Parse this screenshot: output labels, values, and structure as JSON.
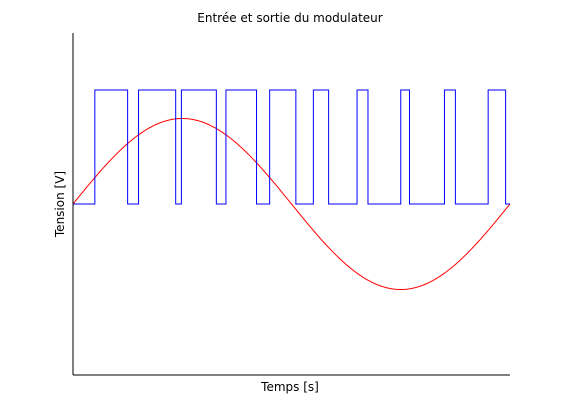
{
  "chart_data": {
    "type": "line",
    "title": "Entrée et sortie du modulateur",
    "xlabel": "Temps [s]",
    "ylabel": "Tension [V]",
    "grid": false,
    "x_ticks_shown": false,
    "y_ticks_shown": false,
    "xlim": [
      0,
      1
    ],
    "ylim": [
      -1.5,
      1.5
    ],
    "series": [
      {
        "color": "#ff0000",
        "style": "sine",
        "period": 1,
        "amplitude": 0.75,
        "values_x": [
          0,
          0.125,
          0.25,
          0.375,
          0.5,
          0.625,
          0.75,
          0.875,
          1
        ],
        "values": [
          0,
          0.53,
          0.75,
          0.53,
          0,
          -0.53,
          -0.75,
          -0.53,
          0
        ]
      },
      {
        "color": "#0000ff",
        "style": "pwm",
        "low": 0,
        "high": 1,
        "high_intervals": [
          [
            0.05,
            0.125
          ],
          [
            0.15,
            0.235
          ],
          [
            0.248,
            0.328
          ],
          [
            0.35,
            0.42
          ],
          [
            0.45,
            0.51
          ],
          [
            0.55,
            0.585
          ],
          [
            0.65,
            0.675
          ],
          [
            0.75,
            0.77
          ],
          [
            0.85,
            0.875
          ],
          [
            0.95,
            0.99
          ]
        ]
      }
    ]
  }
}
